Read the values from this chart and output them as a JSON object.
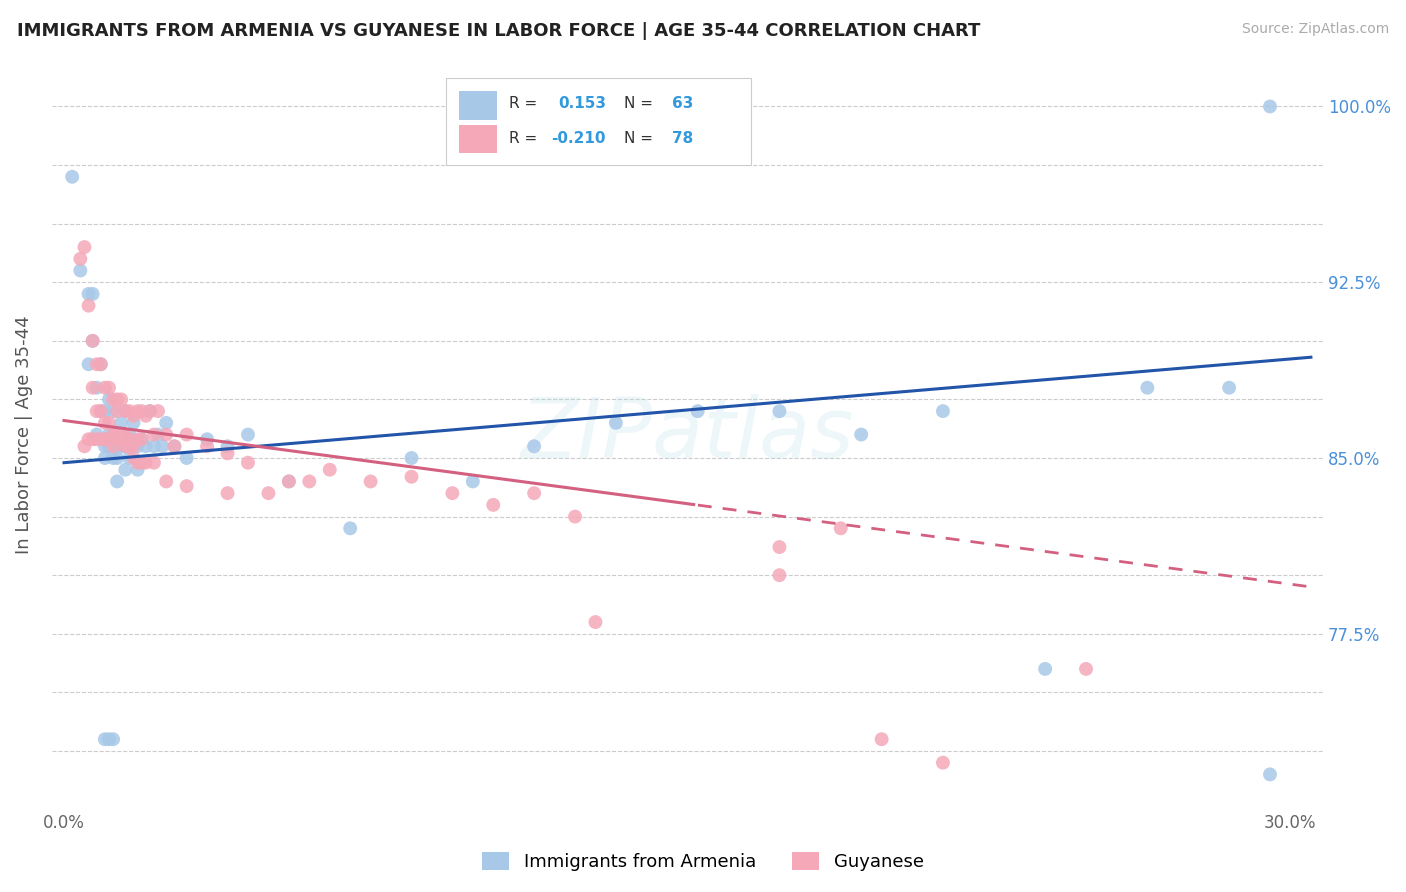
{
  "title": "IMMIGRANTS FROM ARMENIA VS GUYANESE IN LABOR FORCE | AGE 35-44 CORRELATION CHART",
  "source": "Source: ZipAtlas.com",
  "ylabel": "In Labor Force | Age 35-44",
  "y_ticks": [
    0.725,
    0.75,
    0.775,
    0.8,
    0.825,
    0.85,
    0.875,
    0.9,
    0.925,
    0.95,
    0.975,
    1.0
  ],
  "y_tick_labels": [
    "",
    "",
    "77.5%",
    "",
    "",
    "85.0%",
    "",
    "",
    "92.5%",
    "",
    "",
    "100.0%"
  ],
  "ylim": [
    0.7,
    1.02
  ],
  "xlim": [
    -0.003,
    0.308
  ],
  "blue_color": "#a8c8e8",
  "pink_color": "#f4a8b8",
  "blue_line_color": "#2255aa",
  "pink_line_color": "#d46080",
  "watermark": "ZIPatlas",
  "blue_scatter_x": [
    0.002,
    0.004,
    0.006,
    0.006,
    0.007,
    0.007,
    0.008,
    0.008,
    0.009,
    0.009,
    0.01,
    0.01,
    0.01,
    0.011,
    0.011,
    0.011,
    0.012,
    0.012,
    0.012,
    0.013,
    0.013,
    0.014,
    0.014,
    0.015,
    0.015,
    0.015,
    0.016,
    0.016,
    0.017,
    0.017,
    0.018,
    0.018,
    0.019,
    0.02,
    0.021,
    0.022,
    0.023,
    0.024,
    0.025,
    0.027,
    0.03,
    0.035,
    0.04,
    0.045,
    0.055,
    0.07,
    0.085,
    0.1,
    0.115,
    0.135,
    0.155,
    0.175,
    0.195,
    0.215,
    0.24,
    0.265,
    0.285,
    0.295,
    0.01,
    0.011,
    0.012,
    0.013,
    0.295
  ],
  "blue_scatter_y": [
    0.97,
    0.93,
    0.92,
    0.89,
    0.92,
    0.9,
    0.86,
    0.88,
    0.87,
    0.89,
    0.855,
    0.87,
    0.85,
    0.86,
    0.875,
    0.855,
    0.87,
    0.85,
    0.86,
    0.855,
    0.85,
    0.865,
    0.855,
    0.87,
    0.855,
    0.845,
    0.86,
    0.85,
    0.865,
    0.855,
    0.855,
    0.845,
    0.858,
    0.855,
    0.87,
    0.855,
    0.86,
    0.855,
    0.865,
    0.855,
    0.85,
    0.858,
    0.855,
    0.86,
    0.84,
    0.82,
    0.85,
    0.84,
    0.855,
    0.865,
    0.87,
    0.87,
    0.86,
    0.87,
    0.76,
    0.88,
    0.88,
    0.715,
    0.73,
    0.73,
    0.73,
    0.84,
    1.0
  ],
  "pink_scatter_x": [
    0.004,
    0.005,
    0.006,
    0.007,
    0.007,
    0.008,
    0.008,
    0.009,
    0.009,
    0.01,
    0.01,
    0.011,
    0.011,
    0.012,
    0.012,
    0.013,
    0.013,
    0.013,
    0.014,
    0.014,
    0.015,
    0.015,
    0.016,
    0.016,
    0.017,
    0.017,
    0.018,
    0.018,
    0.019,
    0.019,
    0.02,
    0.021,
    0.022,
    0.023,
    0.025,
    0.027,
    0.03,
    0.035,
    0.04,
    0.045,
    0.055,
    0.065,
    0.075,
    0.085,
    0.095,
    0.105,
    0.115,
    0.125,
    0.005,
    0.006,
    0.007,
    0.008,
    0.009,
    0.01,
    0.011,
    0.012,
    0.013,
    0.014,
    0.015,
    0.016,
    0.017,
    0.018,
    0.019,
    0.02,
    0.022,
    0.025,
    0.03,
    0.04,
    0.05,
    0.06,
    0.13,
    0.175,
    0.175,
    0.19,
    0.2,
    0.215,
    0.25
  ],
  "pink_scatter_y": [
    0.935,
    0.94,
    0.915,
    0.9,
    0.88,
    0.89,
    0.87,
    0.89,
    0.87,
    0.88,
    0.865,
    0.88,
    0.865,
    0.875,
    0.86,
    0.875,
    0.86,
    0.87,
    0.875,
    0.86,
    0.87,
    0.86,
    0.87,
    0.858,
    0.868,
    0.855,
    0.87,
    0.858,
    0.87,
    0.858,
    0.868,
    0.87,
    0.86,
    0.87,
    0.86,
    0.855,
    0.86,
    0.855,
    0.852,
    0.848,
    0.84,
    0.845,
    0.84,
    0.842,
    0.835,
    0.83,
    0.835,
    0.825,
    0.855,
    0.858,
    0.858,
    0.858,
    0.858,
    0.858,
    0.858,
    0.855,
    0.858,
    0.858,
    0.855,
    0.855,
    0.85,
    0.848,
    0.848,
    0.848,
    0.848,
    0.84,
    0.838,
    0.835,
    0.835,
    0.84,
    0.78,
    0.812,
    0.8,
    0.82,
    0.73,
    0.72,
    0.76
  ]
}
